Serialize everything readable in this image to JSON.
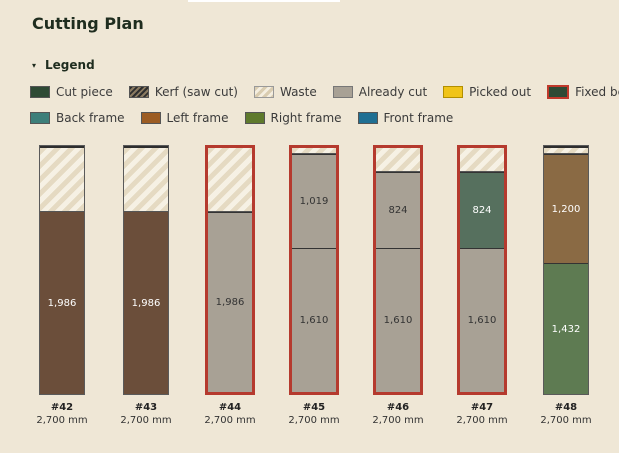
{
  "title": "Cutting Plan",
  "legend": {
    "toggle_label": "Legend",
    "items": [
      {
        "label": "Cut piece",
        "icon": "cut-piece-swatch",
        "color": "#2e4a35"
      },
      {
        "label": "Kerf (saw cut)",
        "icon": "kerf-swatch",
        "color": "#2e2e2e"
      },
      {
        "label": "Waste",
        "icon": "waste-swatch",
        "color": "#e5dac2"
      },
      {
        "label": "Already cut",
        "icon": "already-cut-swatch",
        "color": "#a8a195"
      },
      {
        "label": "Picked out",
        "icon": "picked-out-swatch",
        "color": "#f0c419"
      },
      {
        "label": "Fixed beam",
        "icon": "fixed-beam-swatch",
        "color": "#c0392b"
      },
      {
        "label": "Back frame",
        "icon": "back-frame-swatch",
        "color": "#3d7f7a"
      },
      {
        "label": "Left frame",
        "icon": "left-frame-swatch",
        "color": "#9c5c23"
      },
      {
        "label": "Right frame",
        "icon": "right-frame-swatch",
        "color": "#5f7a2d"
      },
      {
        "label": "Front frame",
        "icon": "front-frame-swatch",
        "color": "#1f6f93"
      }
    ]
  },
  "beams": [
    {
      "id": "#42",
      "length": "2,700 mm",
      "fixed": false,
      "pieces": [
        {
          "value": "1,986",
          "type": "cut-brown"
        }
      ]
    },
    {
      "id": "#43",
      "length": "2,700 mm",
      "fixed": false,
      "pieces": [
        {
          "value": "1,986",
          "type": "cut-brown"
        }
      ]
    },
    {
      "id": "#44",
      "length": "2,700 mm",
      "fixed": true,
      "pieces": [
        {
          "value": "1,986",
          "type": "already"
        }
      ]
    },
    {
      "id": "#45",
      "length": "2,700 mm",
      "fixed": true,
      "pieces": [
        {
          "value": "1,019",
          "type": "already"
        },
        {
          "value": "1,610",
          "type": "already"
        }
      ]
    },
    {
      "id": "#46",
      "length": "2,700 mm",
      "fixed": true,
      "pieces": [
        {
          "value": "824",
          "type": "already"
        },
        {
          "value": "1,610",
          "type": "already"
        }
      ]
    },
    {
      "id": "#47",
      "length": "2,700 mm",
      "fixed": true,
      "pieces": [
        {
          "value": "824",
          "type": "cut-green"
        },
        {
          "value": "1,610",
          "type": "already"
        }
      ]
    },
    {
      "id": "#48",
      "length": "2,700 mm",
      "fixed": false,
      "pieces": [
        {
          "value": "1,200",
          "type": "brown2"
        },
        {
          "value": "1,432",
          "type": "green2"
        }
      ]
    }
  ]
}
